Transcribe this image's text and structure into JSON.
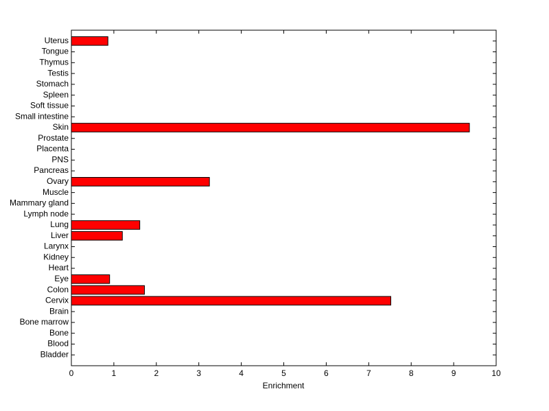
{
  "chart_data": {
    "type": "barh",
    "xlabel": "Enrichment",
    "categories": [
      "Bladder",
      "Blood",
      "Bone",
      "Bone marrow",
      "Brain",
      "Cervix",
      "Colon",
      "Eye",
      "Heart",
      "Kidney",
      "Larynx",
      "Liver",
      "Lung",
      "Lymph node",
      "Mammary gland",
      "Muscle",
      "Ovary",
      "Pancreas",
      "PNS",
      "Placenta",
      "Prostate",
      "Skin",
      "Small intestine",
      "Soft tissue",
      "Spleen",
      "Stomach",
      "Testis",
      "Thymus",
      "Tongue",
      "Uterus"
    ],
    "values": [
      0,
      0,
      0,
      0,
      0,
      7.52,
      1.72,
      0.9,
      0,
      0,
      0,
      1.2,
      1.61,
      0,
      0,
      0,
      3.25,
      0,
      0,
      0,
      0,
      9.37,
      0,
      0,
      0,
      0,
      0,
      0,
      0,
      0.86
    ],
    "color": "#ff0000",
    "xlim": [
      0,
      10
    ],
    "xticks": [
      0,
      1,
      2,
      3,
      4,
      5,
      6,
      7,
      8,
      9,
      10
    ],
    "ylim": [
      0,
      31
    ]
  }
}
